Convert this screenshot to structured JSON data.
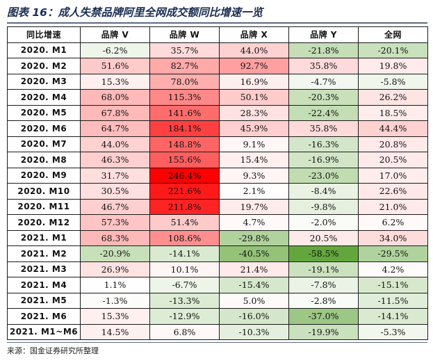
{
  "title": "图表 16：成人失禁品牌阿里全网成交额同比增速一览",
  "source": "来源：国金证券研究所整理",
  "columns": [
    "同比增速",
    "品牌 V",
    "品牌 W",
    "品牌 X",
    "品牌 Y",
    "全网"
  ],
  "rows": [
    {
      "label": "2020. M1",
      "values": [
        "-6.2%",
        "35.7%",
        "44.0%",
        "-21.8%",
        "-20.1%"
      ]
    },
    {
      "label": "2020. M2",
      "values": [
        "51.6%",
        "82.7%",
        "92.7%",
        "35.8%",
        "19.8%"
      ]
    },
    {
      "label": "2020. M3",
      "values": [
        "15.3%",
        "78.0%",
        "16.9%",
        "-4.7%",
        "-5.8%"
      ]
    },
    {
      "label": "2020. M4",
      "values": [
        "68.0%",
        "115.3%",
        "50.1%",
        "-20.3%",
        "26.2%"
      ]
    },
    {
      "label": "2020. M5",
      "values": [
        "67.8%",
        "141.6%",
        "28.3%",
        "-22.4%",
        "18.5%"
      ]
    },
    {
      "label": "2020. M6",
      "values": [
        "64.7%",
        "184.1%",
        "45.9%",
        "35.8%",
        "44.4%"
      ]
    },
    {
      "label": "2020. M7",
      "values": [
        "44.0%",
        "148.8%",
        "9.1%",
        "-16.3%",
        "20.8%"
      ]
    },
    {
      "label": "2020. M8",
      "values": [
        "46.3%",
        "155.6%",
        "15.4%",
        "-16.9%",
        "20.5%"
      ]
    },
    {
      "label": "2020. M9",
      "values": [
        "31.7%",
        "246.4%",
        "9.3%",
        "-23.0%",
        "17.0%"
      ]
    },
    {
      "label": "2020. M10",
      "values": [
        "30.5%",
        "221.6%",
        "2.1%",
        "-8.4%",
        "22.6%"
      ]
    },
    {
      "label": "2020. M11",
      "values": [
        "46.7%",
        "211.8%",
        "19.7%",
        "-9.8%",
        "21.0%"
      ]
    },
    {
      "label": "2020. M12",
      "values": [
        "57.3%",
        "51.4%",
        "4.7%",
        "-2.0%",
        "6.2%"
      ]
    },
    {
      "label": "2021. M1",
      "values": [
        "68.3%",
        "108.6%",
        "-29.8%",
        "20.5%",
        "34.0%"
      ]
    },
    {
      "label": "2021. M2",
      "values": [
        "-20.9%",
        "-14.1%",
        "-40.5%",
        "-58.5%",
        "-29.5%"
      ]
    },
    {
      "label": "2021. M3",
      "values": [
        "26.9%",
        "10.1%",
        "21.4%",
        "-19.1%",
        "4.2%"
      ]
    },
    {
      "label": "2021. M4",
      "values": [
        "1.1%",
        "-6.7%",
        "-15.4%",
        "-7.8%",
        "-15.1%"
      ]
    },
    {
      "label": "2021. M5",
      "values": [
        "-1.3%",
        "-13.3%",
        "5.0%",
        "-2.8%",
        "-11.5%"
      ]
    },
    {
      "label": "2021. M6",
      "values": [
        "15.3%",
        "-12.9%",
        "-16.0%",
        "-37.0%",
        "-14.1%"
      ]
    },
    {
      "label": "2021. M1~M6",
      "values": [
        "14.5%",
        "6.8%",
        "-10.3%",
        "-19.9%",
        "-5.3%"
      ]
    }
  ],
  "heatmap": {
    "max_value": 246.4,
    "min_value": -58.5,
    "positive_color": "#ff0000",
    "negative_color": "#63a73c",
    "neutral_color": "#ffffff"
  }
}
